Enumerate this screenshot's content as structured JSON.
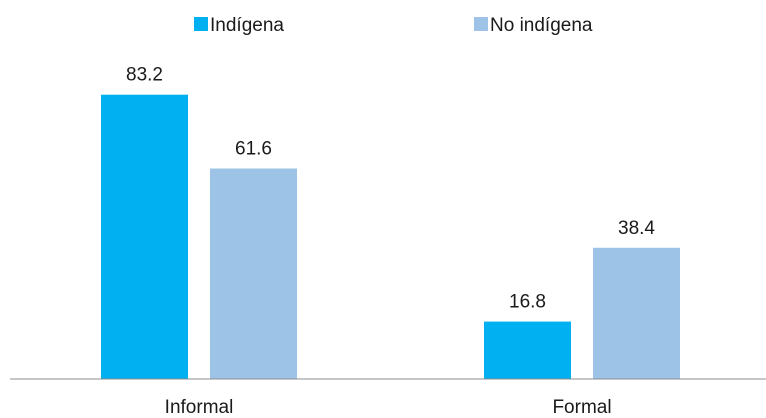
{
  "chart_data": {
    "type": "bar",
    "title": "",
    "xlabel": "",
    "ylabel": "",
    "categories": [
      "Informal",
      "Formal"
    ],
    "series": [
      {
        "name": "Indígena",
        "color": "#00b0f0",
        "values": [
          83.2,
          16.8
        ]
      },
      {
        "name": "No indígena",
        "color": "#9dc3e6",
        "values": [
          61.6,
          38.4
        ]
      }
    ],
    "ylim": [
      0,
      90
    ],
    "grid": false,
    "legend": "top-center",
    "data_labels": true
  }
}
